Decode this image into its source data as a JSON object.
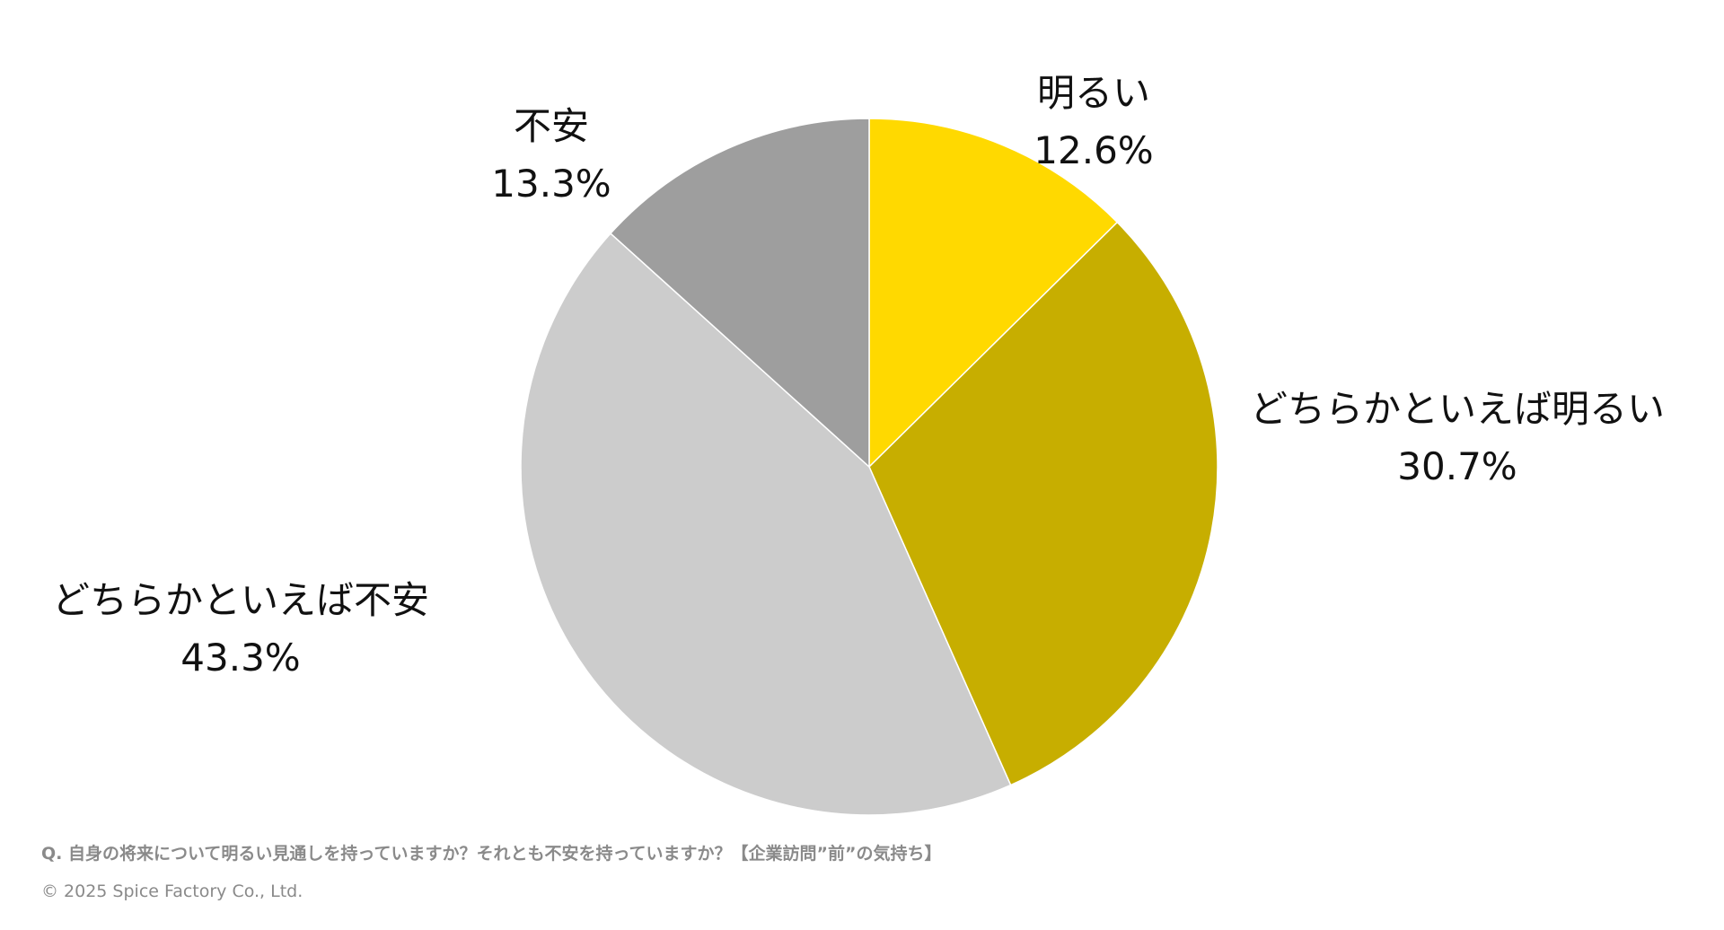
{
  "colors": {
    "bright": "#FFD900",
    "somewhat_bright": "#C7AE00",
    "somewhat_anxious": "#CCCCCC",
    "anxious": "#9E9E9E",
    "label_text": "#111111",
    "caption_text": "#8A8A8A",
    "background": "#FFFFFF"
  },
  "chart_data": {
    "type": "pie",
    "start_angle_deg": 0,
    "direction": "clockwise",
    "slices": [
      {
        "label": "明るい",
        "value": 12.6,
        "value_label": "12.6%",
        "color": "#FFD900"
      },
      {
        "label": "どちらかといえば明るい",
        "value": 30.7,
        "value_label": "30.7%",
        "color": "#C7AE00"
      },
      {
        "label": "どちらかといえば不安",
        "value": 43.3,
        "value_label": "43.3%",
        "color": "#CCCCCC"
      },
      {
        "label": "不安",
        "value": 13.3,
        "value_label": "13.3%",
        "color": "#9E9E9E"
      }
    ]
  },
  "footer": {
    "question": "Q. 自身の将来について明るい見通しを持っていますか？それとも不安を持っていますか？【企業訪問”前”の気持ち】",
    "copyright": "© 2025 Spice Factory Co., Ltd."
  }
}
